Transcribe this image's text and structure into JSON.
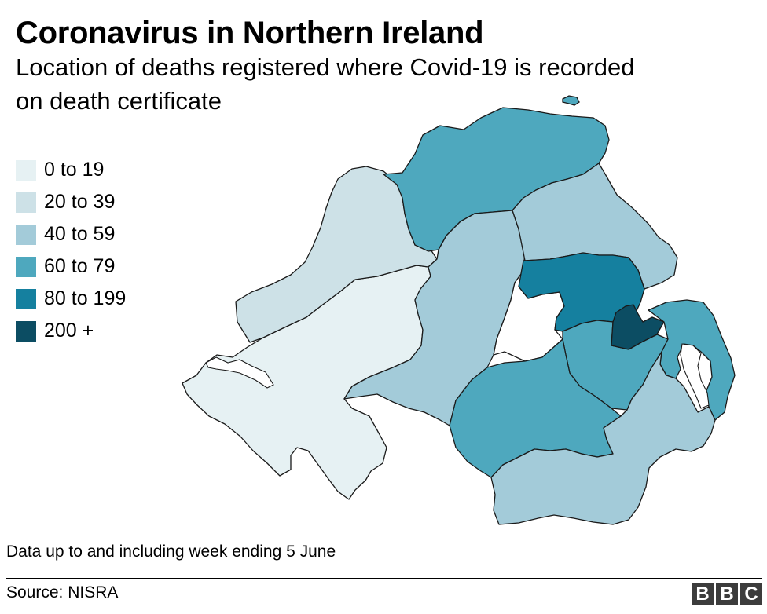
{
  "title": "Coronavirus in Northern Ireland",
  "subtitle": "Location of deaths registered where Covid-19 is recorded on death certificate",
  "legend": [
    {
      "label": "0 to 19",
      "color": "#e6f1f3"
    },
    {
      "label": "20 to 39",
      "color": "#cde1e7"
    },
    {
      "label": "40 to 59",
      "color": "#a3cbd9"
    },
    {
      "label": "60 to 79",
      "color": "#4ea8be"
    },
    {
      "label": "80 to 199",
      "color": "#15809f"
    },
    {
      "label": "200 +",
      "color": "#0c4d63"
    }
  ],
  "map": {
    "regions": [
      {
        "id": "causeway-coast-and-glens",
        "band": "60 to 79"
      },
      {
        "id": "derry-and-strabane",
        "band": "20 to 39"
      },
      {
        "id": "fermanagh-and-omagh",
        "band": "0 to 19"
      },
      {
        "id": "mid-ulster",
        "band": "40 to 59"
      },
      {
        "id": "mid-and-east-antrim",
        "band": "40 to 59"
      },
      {
        "id": "antrim-and-newtownabbey",
        "band": "80 to 199"
      },
      {
        "id": "belfast",
        "band": "200 +"
      },
      {
        "id": "lisburn-and-castlereagh",
        "band": "60 to 79"
      },
      {
        "id": "ards-and-north-down",
        "band": "60 to 79"
      },
      {
        "id": "armagh-banbridge-and-craigavon",
        "band": "60 to 79"
      },
      {
        "id": "newry-mourne-and-down",
        "band": "40 to 59"
      }
    ]
  },
  "note": "Data up to and including week ending 5 June",
  "source": "Source: NISRA",
  "logo": [
    "B",
    "B",
    "C"
  ]
}
